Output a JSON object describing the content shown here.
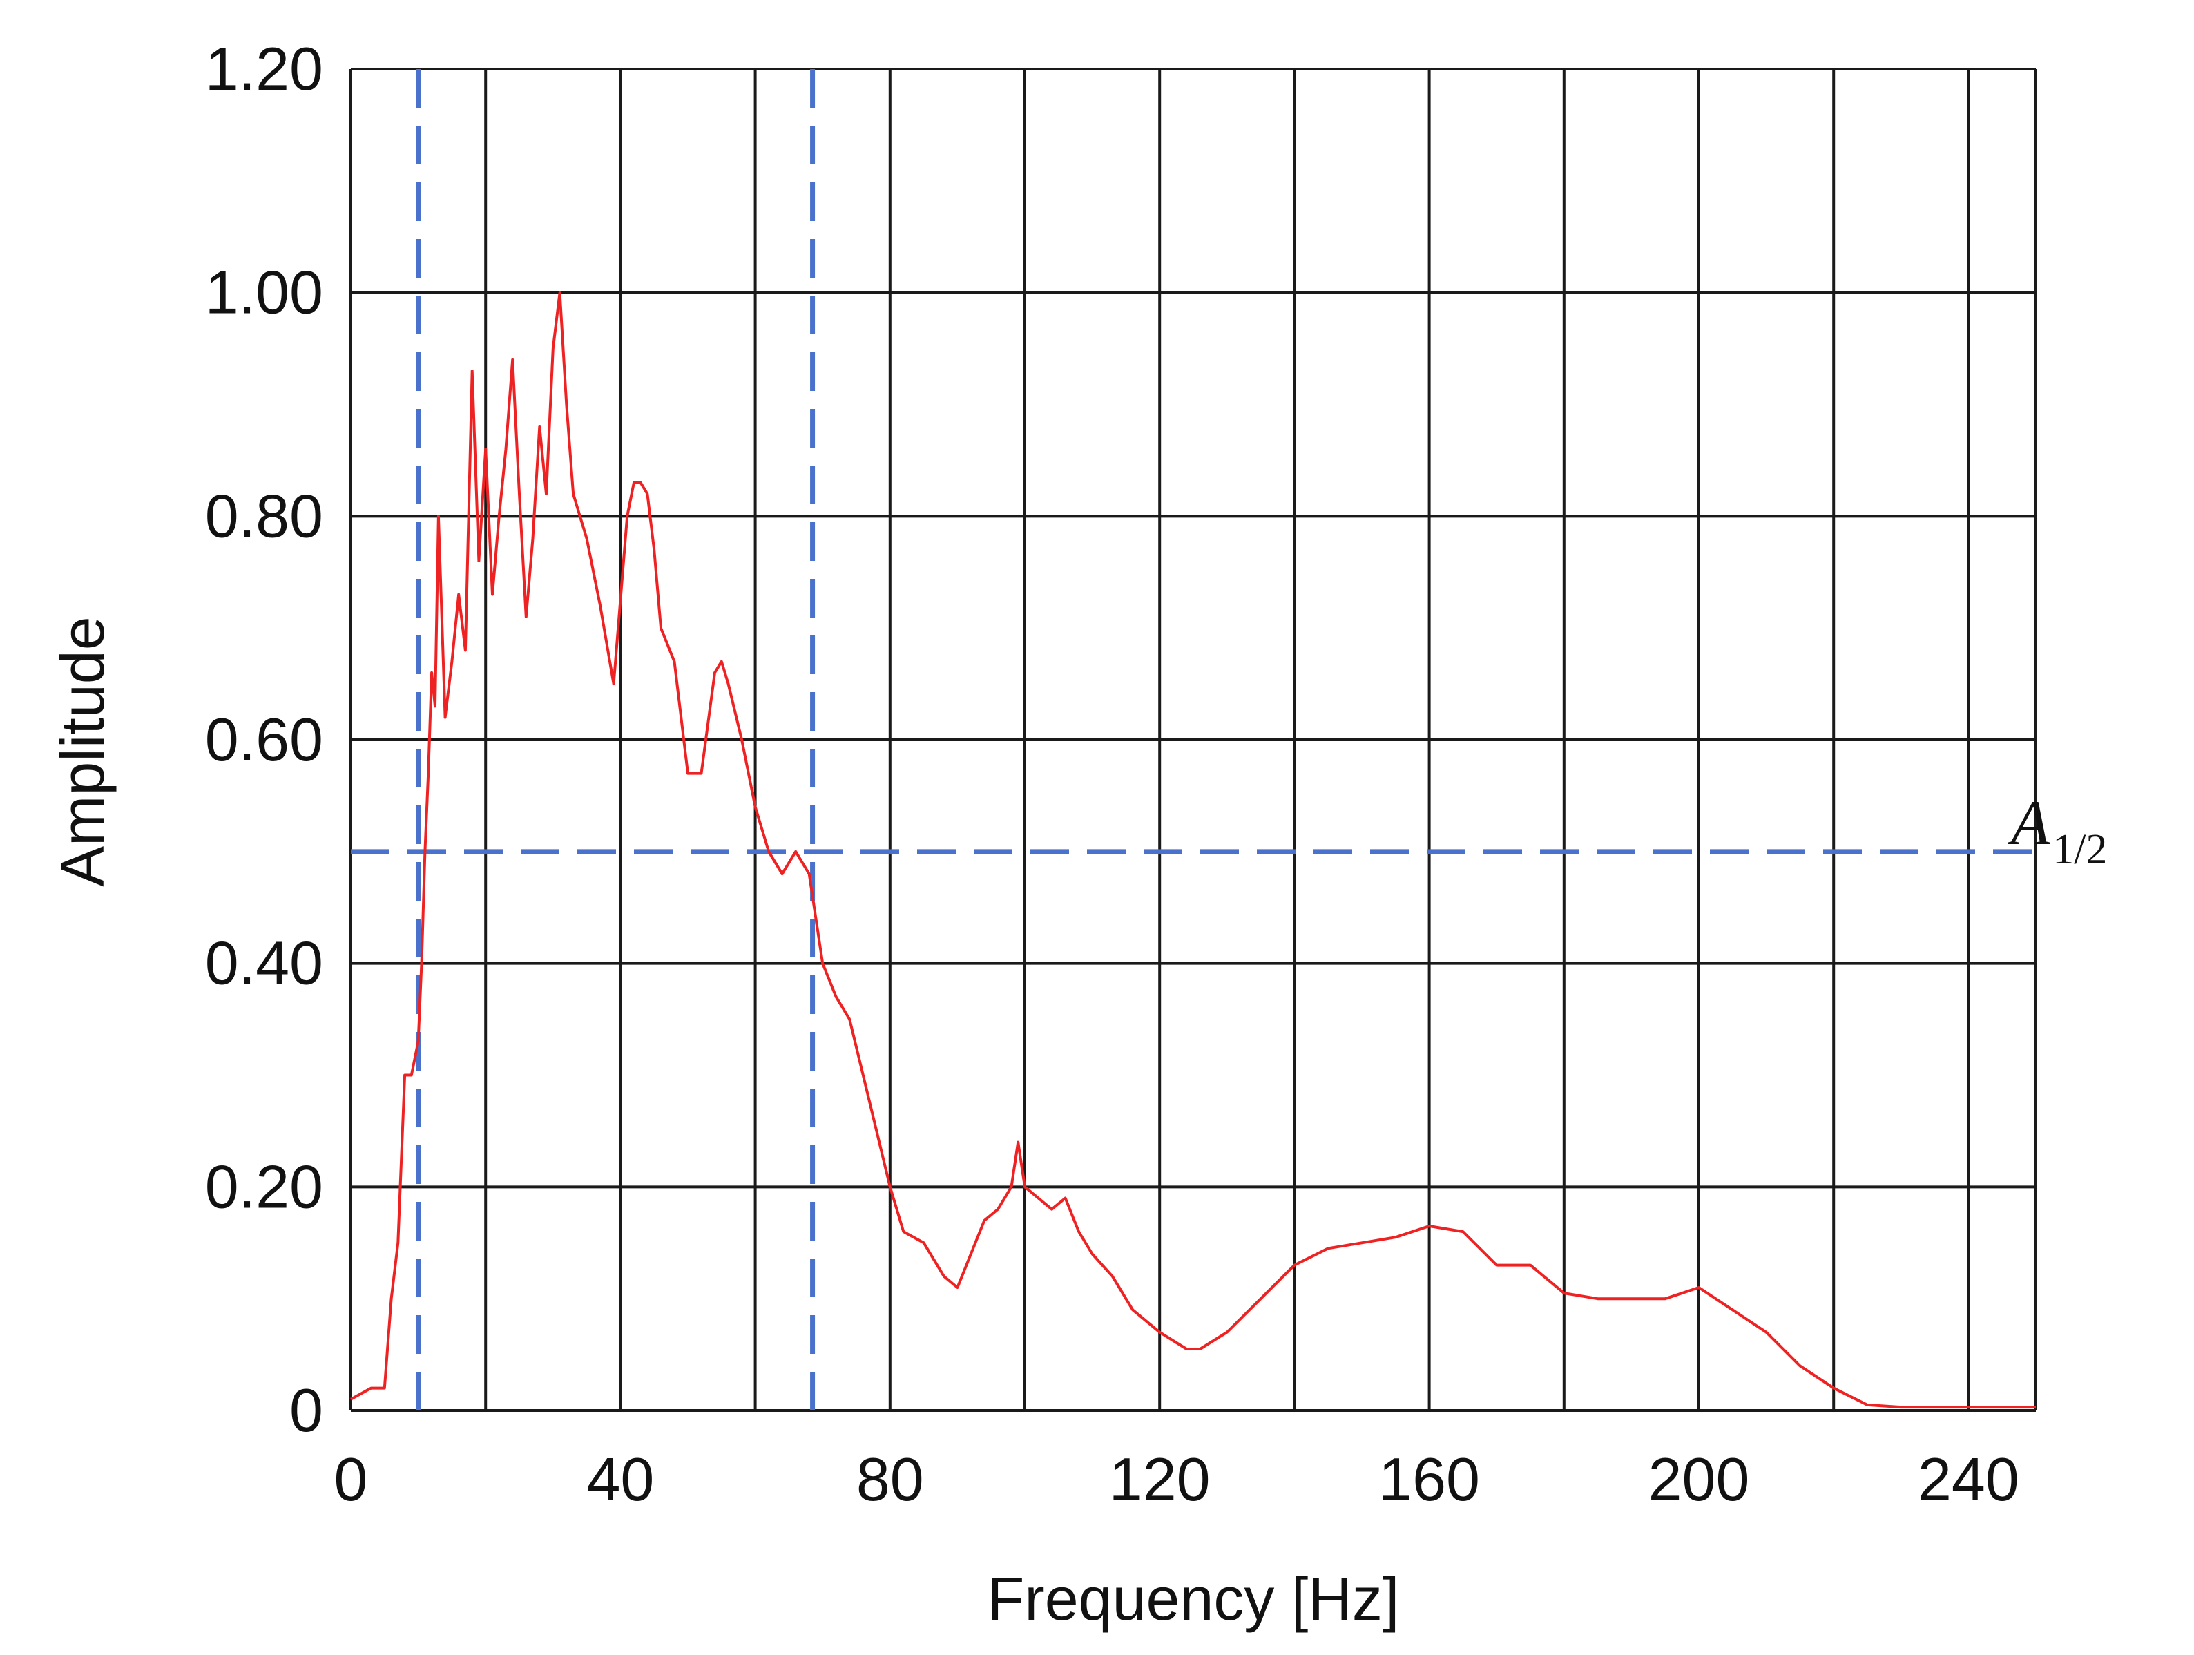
{
  "chart_data": {
    "type": "line",
    "title": "",
    "xlabel": "Frequency [Hz]",
    "ylabel": "Amplitude",
    "xlim": [
      0,
      250
    ],
    "ylim": [
      0,
      1.2
    ],
    "grid": true,
    "x_ticks": [
      0,
      40,
      80,
      120,
      160,
      200,
      240
    ],
    "x_tick_labels": [
      "0",
      "40",
      "80",
      "120",
      "160",
      "200",
      "240"
    ],
    "x_gridlines": [
      0,
      20,
      40,
      60,
      80,
      100,
      120,
      140,
      160,
      180,
      200,
      220,
      240,
      250
    ],
    "y_ticks": [
      0,
      0.2,
      0.4,
      0.6,
      0.8,
      1.0,
      1.2
    ],
    "y_tick_labels": [
      "0",
      "0.20",
      "0.40",
      "0.60",
      "0.80",
      "1.00",
      "1.20"
    ],
    "series": [
      {
        "color": "#ee2222",
        "x": [
          0,
          3,
          5,
          6,
          7,
          8,
          9,
          10,
          10.5,
          11,
          11.5,
          12,
          12.5,
          13,
          14,
          15,
          16,
          17,
          18,
          19,
          20,
          21,
          22,
          23,
          24,
          25,
          26,
          27,
          28,
          29,
          30,
          31,
          32,
          33,
          34,
          35,
          37,
          39,
          41,
          42,
          43,
          44,
          45,
          46,
          48,
          50,
          52,
          54,
          55,
          56,
          58,
          60,
          62,
          64,
          66,
          67,
          68,
          70,
          72,
          74,
          76,
          78,
          80,
          82,
          85,
          88,
          90,
          92,
          94,
          96,
          98,
          99,
          100,
          102,
          104,
          106,
          108,
          110,
          113,
          116,
          120,
          124,
          126,
          130,
          135,
          140,
          145,
          150,
          155,
          160,
          165,
          170,
          175,
          180,
          185,
          190,
          195,
          200,
          205,
          210,
          215,
          220,
          225,
          230,
          240,
          250
        ],
        "values": [
          0.01,
          0.02,
          0.02,
          0.1,
          0.15,
          0.3,
          0.3,
          0.33,
          0.4,
          0.5,
          0.57,
          0.66,
          0.63,
          0.8,
          0.62,
          0.67,
          0.73,
          0.68,
          0.93,
          0.76,
          0.86,
          0.73,
          0.8,
          0.86,
          0.94,
          0.82,
          0.71,
          0.78,
          0.88,
          0.82,
          0.95,
          1.0,
          0.9,
          0.82,
          0.8,
          0.78,
          0.72,
          0.65,
          0.8,
          0.83,
          0.83,
          0.82,
          0.77,
          0.7,
          0.67,
          0.57,
          0.57,
          0.66,
          0.67,
          0.65,
          0.6,
          0.54,
          0.5,
          0.48,
          0.5,
          0.49,
          0.48,
          0.4,
          0.37,
          0.35,
          0.3,
          0.25,
          0.2,
          0.16,
          0.15,
          0.12,
          0.11,
          0.14,
          0.17,
          0.18,
          0.2,
          0.24,
          0.2,
          0.19,
          0.18,
          0.19,
          0.16,
          0.14,
          0.12,
          0.09,
          0.07,
          0.055,
          0.055,
          0.07,
          0.1,
          0.13,
          0.145,
          0.15,
          0.155,
          0.165,
          0.16,
          0.13,
          0.13,
          0.105,
          0.1,
          0.1,
          0.1,
          0.11,
          0.09,
          0.07,
          0.04,
          0.02,
          0.005,
          0.003,
          0.003,
          0.003
        ]
      }
    ],
    "reference_lines": [
      {
        "orientation": "horizontal",
        "value": 0.5,
        "color": "#4a72cc",
        "style": "dashed",
        "label_main": "A",
        "label_sub": "1/2"
      },
      {
        "orientation": "vertical",
        "value": 10,
        "color": "#4a72cc",
        "style": "dashed"
      },
      {
        "orientation": "vertical",
        "value": 68.5,
        "color": "#4a72cc",
        "style": "dashed"
      }
    ]
  }
}
